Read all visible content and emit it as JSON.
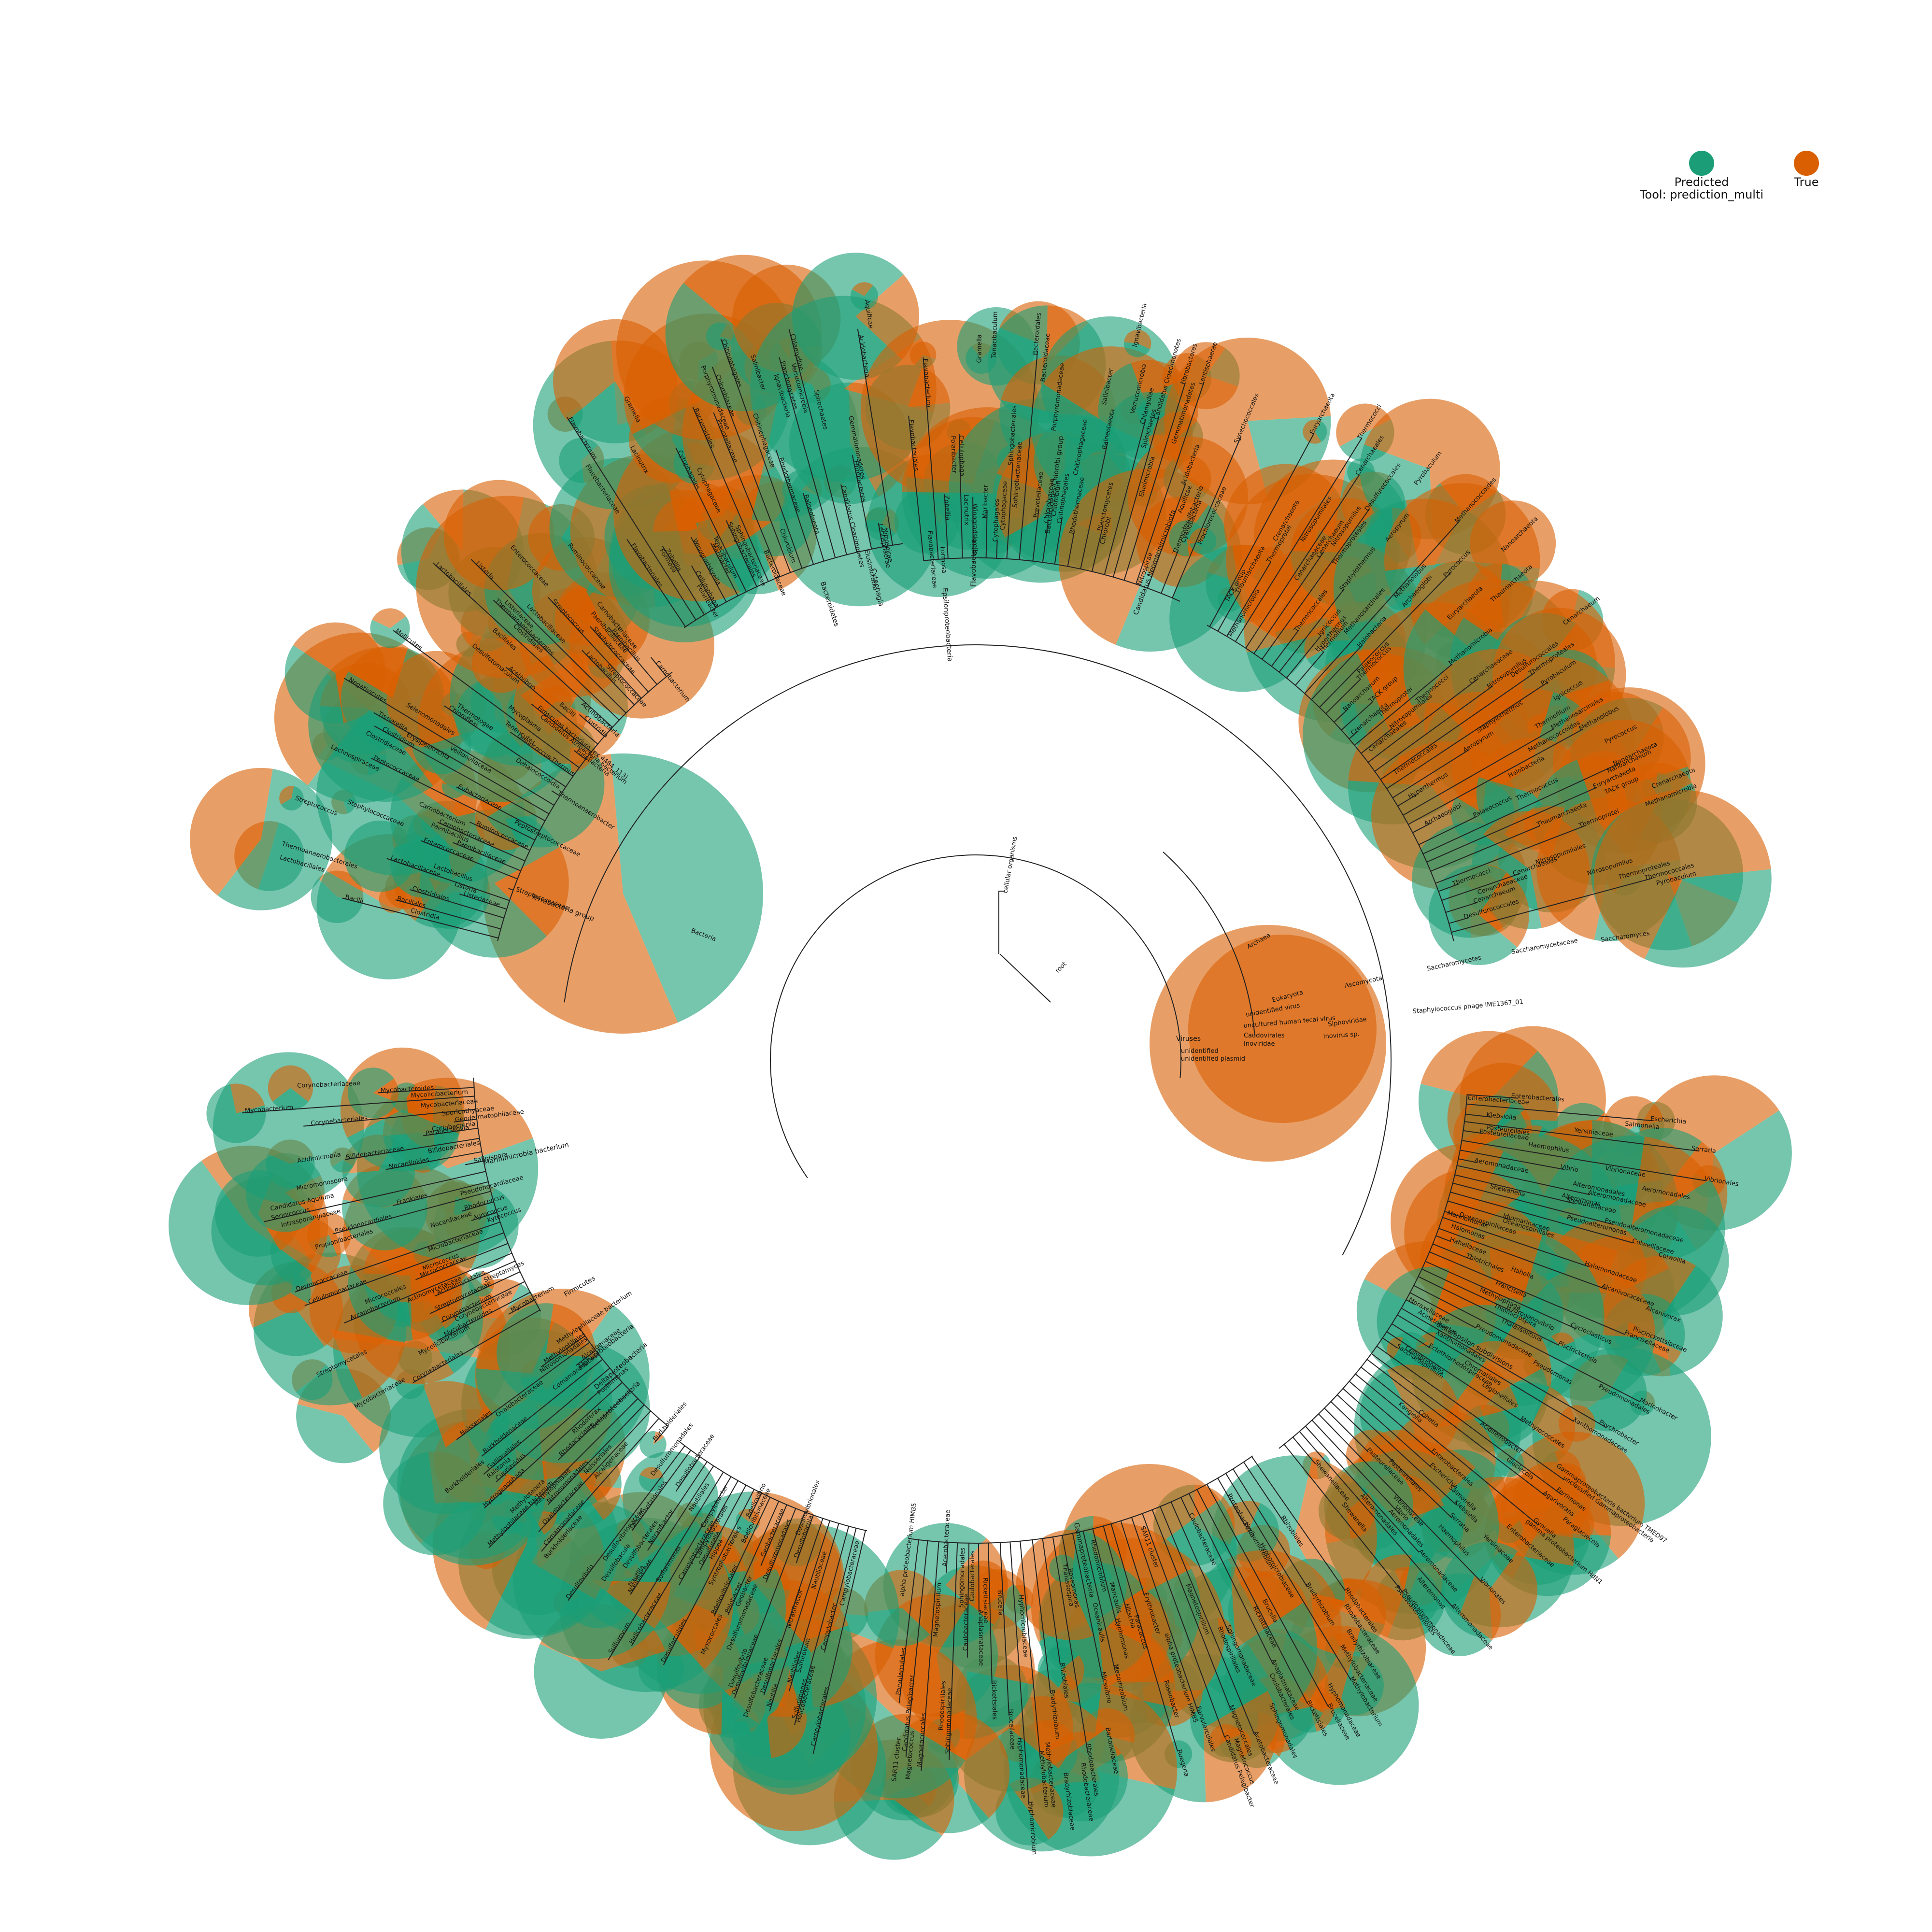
{
  "colors": {
    "predicted": "#1b9e77",
    "true": "#d95f02"
  },
  "legend": {
    "predicted": "Predicted",
    "true": "True",
    "tool": "Tool:  prediction_multi"
  },
  "root": "root",
  "top": [
    "cellular organisms",
    "Viruses",
    "unidentified",
    "unidentified plasmid"
  ],
  "domains": [
    "Bacteria",
    "Archaea",
    "Eukaryota"
  ],
  "viruses": [
    "unidentified virus",
    "uncultured human fecal virus",
    "Caudovirales",
    "Inoviridae",
    "Siphoviridae",
    "Inovirus sp.",
    "Staphylococcus phage IME1367_01"
  ],
  "eukaryota": [
    "Ascomycota",
    "Saccharomycetes",
    "Saccharomycetaceae",
    "Saccharomyces"
  ],
  "bacteria_major": [
    "Terrabacteria group",
    "Proteobacteria",
    "Bacteroidetes/Chlorobi group",
    "Candidatus Neomarinimicrobiota",
    "Marinimicrobia bacterium",
    "Actinobacteria",
    "Firmicutes",
    "Deltaproteobacteria",
    "delta/epsilon subdivisions",
    "Gammaproteobacteria",
    "Alphaproteobacteria",
    "Betaproteobacteria",
    "Epsilonproteobacteria",
    "Bacteroidetes",
    "Chlorobi",
    "Flavobacteriia",
    "Cytophagia"
  ],
  "archaea_major": [
    "Euryarchaeota",
    "TACK group",
    "Thaumarchaeota",
    "Crenarchaeota",
    "Thermoprotei",
    "Methanomicrobia",
    "Thermococci",
    "Nitrosopumilales",
    "Cenarchaeales",
    "Cenarchaeaceae",
    "Cenarchaeum",
    "Nitrosopumilus",
    "Desulfurococcales",
    "Thermoproteales",
    "Thermococcales",
    "Pyrobaculum",
    "Staphylothermus",
    "Aeropyrum",
    "Ignicoccus",
    "Hyperthermus",
    "Thermofilum",
    "Methanosarcinales",
    "Methanococcoides",
    "Methanolobus",
    "Halobacteria",
    "Archaeoglobi",
    "Pyrococcus",
    "Palaeococcus",
    "Thermococcus",
    "Nanoarchaeota",
    "Nanoarchaeum"
  ],
  "firmicutes_labels": [
    "Bacilli",
    "Clostridia",
    "Bacillales",
    "Lactobacillales",
    "Clostridiales",
    "Thermoanaerobacterales",
    "Listeriaceae",
    "Listeria",
    "Lactobacillaceae",
    "Lactobacillus",
    "Streptococcaceae",
    "Streptococcus",
    "Enterococcaceae",
    "Staphylococcaceae",
    "Paenibacillaceae",
    "Paenibacillus",
    "Carnobacteriaceae",
    "Carnobacterium",
    "Ruminococcaceae",
    "Lachnospiraceae",
    "Peptococcaceae",
    "Peptostreptococcaceae",
    "Eubacteriaceae",
    "Clostridiaceae",
    "Clostridium",
    "Erysipelotrichia",
    "Tissierellia",
    "Veillonellaceae",
    "Negativicutes",
    "Selenomonadales",
    "Thermoanaerobacter",
    "Dehalococcoidia",
    "Chloroflexi",
    "Thermotogae",
    "Deinococcus-Thermus",
    "Tenericutes",
    "Mollicutes",
    "Mycoplasma",
    "Fusobacteria",
    "Candidatus Atribacteria bacterium",
    "Firmicutes bacterium (ex 4484_113)",
    "Desulfotomaculum",
    "Acetivibrio"
  ],
  "actino_labels": [
    "Corynebacteriales",
    "Mycobacteriaceae",
    "Mycobacterium",
    "Mycolicibacterium",
    "Mycobacteroides",
    "Corynebacteriaceae",
    "Corynebacterium",
    "Streptomycetales",
    "Streptomycetaceae",
    "Streptomyces",
    "Actinomycetales",
    "Actinomycetaceae",
    "Arcanobacterium",
    "Micrococcales",
    "Micrococcaceae",
    "Micrococcus",
    "Cellulomonadaceae",
    "Microbacteriaceae",
    "Dermacoccaceae",
    "Kytococcus",
    "Agrococcus",
    "Nocardiaceae",
    "Rhodococcus",
    "Propionibacteriales",
    "Pseudonocardiales",
    "Pseudonocardiaceae",
    "Frankiales",
    "Intrasporangiaceae",
    "Serinicoccus",
    "Candidatus Aquiluna",
    "Salinispora",
    "Micromonospora",
    "Nocardioides",
    "Bifidobacteriales",
    "Bifidobacteriaceae",
    "Acidimicrobiia",
    "Paraoerskovia",
    "Coriobacteriia",
    "Geodermatophilaceae",
    "Sporichthyaceae"
  ],
  "delta_epsilon_labels": [
    "Campylobacterales",
    "Campylobacteraceae",
    "Campylobacter",
    "Helicobacteraceae",
    "Sulfurimonas",
    "Sulfurovum",
    "Nautiliales",
    "Nautiliaceae",
    "Nautilia",
    "Nitratifractor",
    "Desulfobacterales",
    "Desulfobacteraceae",
    "Desulfobacula",
    "Desulfovibrionales",
    "Desulfovibrionaceae",
    "Desulfovibrio",
    "Desulfuromonadales",
    "Desulfuromonadaceae",
    "Geobacteraceae",
    "Geobacter",
    "Pelobacter",
    "Myxococcales",
    "Bdellovibrionales",
    "Bdellovibrionaceae",
    "Bdellovibrio",
    "Syntrophobacterales",
    "Desulfarculales",
    "Hippea",
    "Desulfurella"
  ],
  "beta_labels": [
    "Burkholderiales",
    "Burkholderiaceae",
    "Comamonadaceae",
    "Alcaligenaceae",
    "Oxalobacteraceae",
    "Neisseriales",
    "Nitrosomonadales",
    "Methylophilales",
    "Methylophilaceae bacterium",
    "Methylotenera",
    "Rhodocyclales",
    "Rhodoferax",
    "Hydrogenophaga",
    "Pusillimonas",
    "Cupriavidus",
    "Ralstonia",
    "Gallionellales"
  ],
  "alpha_labels": [
    "Rhodobacterales",
    "Rhodobacteraceae",
    "Rhizobiales",
    "Bradyrhizobiaceae",
    "Bradyrhizobium",
    "Methylobacteriaceae",
    "Methylobacterium",
    "Hyphomicrobiaceae",
    "Hyphomicrobium",
    "Hyphomonadaceae",
    "Brucellaceae",
    "Brucella",
    "Rickettsiales",
    "Rickettsiaceae",
    "Anaplasmataceae",
    "Caulobacterales",
    "Caulobacteraceae",
    "Sphingomonadales",
    "Sphingomonadaceae",
    "Rhodospirillales",
    "Acetobacteraceae",
    "Magnetospirillum",
    "Magnetococcales",
    "Magnetococcus",
    "Candidatus Pelagibacter",
    "SAR11 cluster",
    "Parvularculales",
    "alpha proteobacterium HIMB5",
    "Erythrobacter",
    "Roseobacter",
    "Ruegeria",
    "Paracoccus",
    "Hirschia",
    "Maricaulis",
    "Hyphomonas",
    "Rhodomicrobium",
    "Mesorhizobium",
    "Oceanicaulis",
    "Micavibrio",
    "Bartonellaceae",
    "Roseomonas",
    "Thalassospira"
  ],
  "gamma_labels": [
    "Enterobacterales",
    "Enterobacteriaceae",
    "Escherichia",
    "Salmonella",
    "Klebsiella",
    "Yersiniaceae",
    "Serratia",
    "Pasteurellales",
    "Pasteurellaceae",
    "Haemophilus",
    "Vibrionales",
    "Vibrionaceae",
    "Vibrio",
    "Aeromonadales",
    "Aeromonadaceae",
    "Alteromonadales",
    "Alteromonadaceae",
    "Alteromonas",
    "Shewanellaceae",
    "Shewanella",
    "Pseudoalteromonadaceae",
    "Pseudoalteromonas",
    "Colwelliaceae",
    "Colwellia",
    "Idiomarinaceae",
    "Oceanospirillales",
    "Oceanospirillaceae",
    "Marinomonas",
    "Halomonadaceae",
    "Halomonas",
    "Alcanivoracaceae",
    "Alcanivorax",
    "Hahellaceae",
    "Hahella",
    "Thiotrichales",
    "Piscirickettsiaceae",
    "Francisellaceae",
    "Francisella",
    "Cycloclasticus",
    "Methylophaga",
    "Hydrogenovibrio",
    "Thiomicrospira",
    "Piscirickettsia",
    "Thalassolituus",
    "Marinobacter",
    "Pseudomonadales",
    "Pseudomonadaceae",
    "Pseudomonas",
    "Moraxellaceae",
    "Acinetobacter",
    "Psychrobacter",
    "Xanthomonadales",
    "Xanthomonadaceae",
    "Chromatiales",
    "Ectothiorhodospiraceae",
    "Legionellales",
    "Methylococcales",
    "Cellvibrionales",
    "Saccharospirillum",
    "Gammaproteobacteria bacterium TMED97",
    "unclassified Gammaproteobacteria",
    "Acidiferrobacter",
    "Ferrimonas",
    "Glaciecola",
    "Agarivorans",
    "Paraglaciecola",
    "Cobetia",
    "Kangiella",
    "Gynuella",
    "gamma proteobacterium HdN1"
  ],
  "bacteroidetes_labels": [
    "Flavobacteriales",
    "Flavobacteriaceae",
    "Flavobacterium",
    "Formosa",
    "Zobellia",
    "Polaribacter",
    "Cellulophaga",
    "Lacinutrix",
    "Winogradskyella",
    "Gramella",
    "Maribacter",
    "Tenacibaculum",
    "Cytophagales",
    "Cytophagaceae",
    "Sphingobacteriales",
    "Sphingobacteriaceae",
    "Bacteroidales",
    "Bacteroidaceae",
    "Prevotellaceae",
    "Porphyromonadaceae",
    "Chlorobiaceae",
    "Chlorobium",
    "Chitinophagales",
    "Chitinophagaceae",
    "Rhodothermaceae",
    "Salinibacter",
    "Balneolaeota",
    "Ignavibacteria",
    "Planctomycetes",
    "Verrucomicrobia",
    "Chlamydiae",
    "Spirochaetes",
    "Candidatus Cloacimonetes",
    "Elusimicrobia",
    "Fibrobacteres",
    "Gemmatimonadetes",
    "Lentisphaerae",
    "Nitrospirae",
    "Acidobacteria",
    "Aquificae",
    "Thermodesulfobacteria",
    "Cyanobacteria",
    "Synechococcales",
    "Prochlorococcaceae",
    "Prochlorococcus",
    "Synechococcus",
    "Nostocales"
  ]
}
